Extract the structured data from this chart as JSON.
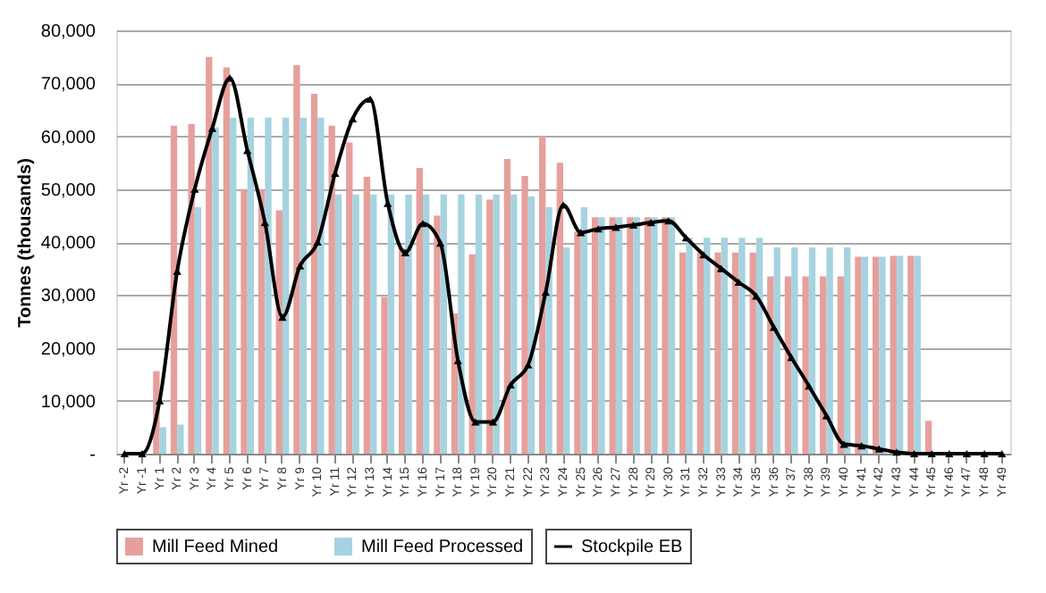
{
  "chart_data": {
    "type": "bar",
    "ylabel": "Tonnes (thousands)",
    "categories": [
      "Yr -2",
      "Yr -1",
      "Yr 1",
      "Yr 2",
      "Yr 3",
      "Yr 4",
      "Yr 5",
      "Yr 6",
      "Yr 7",
      "Yr 8",
      "Yr 9",
      "Yr 10",
      "Yr 11",
      "Yr 12",
      "Yr 13",
      "Yr 14",
      "Yr 15",
      "Yr 16",
      "Yr 17",
      "Yr 18",
      "Yr 19",
      "Yr 20",
      "Yr 21",
      "Yr 22",
      "Yr 23",
      "Yr 24",
      "Yr 25",
      "Yr 26",
      "Yr 27",
      "Yr 28",
      "Yr 29",
      "Yr 30",
      "Yr 31",
      "Yr 32",
      "Yr 33",
      "Yr 34",
      "Yr 35",
      "Yr 36",
      "Yr 37",
      "Yr 38",
      "Yr 39",
      "Yr 40",
      "Yr 41",
      "Yr 42",
      "Yr 43",
      "Yr 44",
      "Yr 45",
      "Yr 46",
      "Yr 47",
      "Yr 48",
      "Yr 49"
    ],
    "series": [
      {
        "name": "Mill Feed Mined",
        "color": "#e6a09c",
        "values": [
          0,
          0,
          15600,
          62000,
          62300,
          75000,
          73000,
          50000,
          50000,
          46000,
          73400,
          68000,
          62000,
          58800,
          52300,
          29600,
          38800,
          54000,
          45000,
          26500,
          37700,
          48000,
          55700,
          52500,
          60000,
          55000,
          42000,
          44700,
          44700,
          44700,
          44700,
          44700,
          38000,
          38000,
          38000,
          38000,
          38000,
          33500,
          33500,
          33500,
          33500,
          33500,
          37200,
          37200,
          37400,
          37400,
          6200,
          0,
          0,
          0,
          0
        ]
      },
      {
        "name": "Mill Feed Processed",
        "color": "#a6d3e0",
        "values": [
          0,
          0,
          5000,
          5500,
          46600,
          61700,
          63500,
          63500,
          63500,
          63500,
          63500,
          63500,
          49000,
          49000,
          49000,
          49000,
          49000,
          49000,
          49000,
          49000,
          49000,
          49000,
          49000,
          48600,
          46600,
          39000,
          46600,
          44700,
          44700,
          44700,
          44700,
          44700,
          40800,
          40800,
          40800,
          40800,
          40800,
          39000,
          39000,
          39000,
          39000,
          39000,
          37200,
          37200,
          37400,
          37400,
          0,
          0,
          0,
          0,
          0
        ]
      },
      {
        "name": "Stockpile EB",
        "type": "line",
        "color": "#000000",
        "values": [
          0,
          0,
          10000,
          34500,
          50000,
          61500,
          71000,
          57300,
          43700,
          25800,
          35500,
          40000,
          53000,
          63300,
          67000,
          47300,
          38000,
          43500,
          39800,
          17600,
          6000,
          6000,
          13000,
          16800,
          30500,
          47000,
          41800,
          42500,
          42800,
          43200,
          43700,
          44000,
          40800,
          37600,
          35000,
          32400,
          29800,
          23900,
          18200,
          12800,
          7200,
          1800,
          1500,
          900,
          300,
          0,
          0,
          0,
          0,
          0,
          0
        ]
      }
    ],
    "ylim": [
      0,
      80000
    ],
    "yticks": [
      {
        "value": 0,
        "label": "-"
      },
      {
        "value": 10000,
        "label": "10,000"
      },
      {
        "value": 20000,
        "label": "20,000"
      },
      {
        "value": 30000,
        "label": "30,000"
      },
      {
        "value": 40000,
        "label": "40,000"
      },
      {
        "value": 50000,
        "label": "50,000"
      },
      {
        "value": 60000,
        "label": "60,000"
      },
      {
        "value": 70000,
        "label": "70,000"
      },
      {
        "value": 80000,
        "label": "80,000"
      }
    ],
    "grid": "y",
    "legend": "bottom",
    "marker": "triangle",
    "line_style": "solid"
  }
}
